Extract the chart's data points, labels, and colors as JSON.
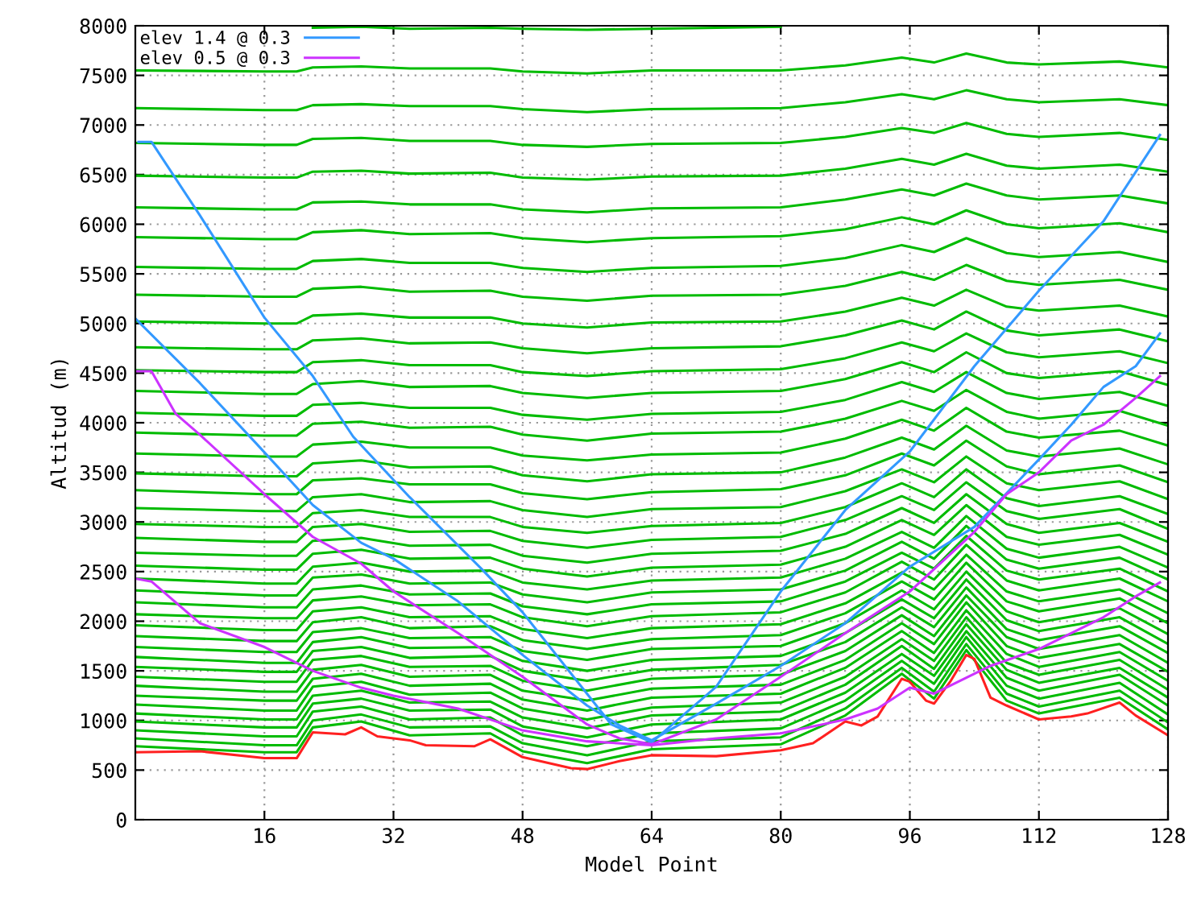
{
  "chart_data": {
    "type": "line",
    "xlabel": "Model Point",
    "ylabel": "Altitud (m)",
    "xlim": [
      0,
      128
    ],
    "ylim": [
      0,
      8000
    ],
    "xticks": [
      16,
      32,
      48,
      64,
      80,
      96,
      112,
      128
    ],
    "yticks": [
      0,
      500,
      1000,
      1500,
      2000,
      2500,
      3000,
      3500,
      4000,
      4500,
      5000,
      5500,
      6000,
      6500,
      7000,
      7500,
      8000
    ],
    "grid": true,
    "legend": "top left",
    "x": [
      0,
      16,
      20,
      22,
      28,
      34,
      44,
      48,
      56,
      64,
      80,
      88,
      95,
      99,
      103,
      108,
      112,
      122,
      128
    ],
    "series": [
      {
        "color": "#00bb00",
        "values": [
          740,
          680,
          680,
          930,
          990,
          850,
          870,
          690,
          570,
          710,
          760,
          1050,
          1470,
          1220,
          1710,
          1200,
          1070,
          1230,
          910
        ]
      },
      {
        "color": "#00bb00",
        "values": [
          820,
          750,
          750,
          1000,
          1060,
          930,
          940,
          770,
          650,
          790,
          830,
          1120,
          1530,
          1290,
          1770,
          1270,
          1140,
          1300,
          980
        ]
      },
      {
        "color": "#00bb00",
        "values": [
          900,
          840,
          840,
          1090,
          1140,
          1010,
          1030,
          850,
          740,
          870,
          920,
          1200,
          1600,
          1370,
          1840,
          1350,
          1220,
          1380,
          1060
        ]
      },
      {
        "color": "#00bb00",
        "values": [
          990,
          930,
          930,
          1170,
          1220,
          1100,
          1110,
          940,
          830,
          960,
          1010,
          1280,
          1670,
          1450,
          1900,
          1430,
          1300,
          1460,
          1150
        ]
      },
      {
        "color": "#00bb00",
        "values": [
          1070,
          1010,
          1010,
          1250,
          1300,
          1180,
          1190,
          1030,
          920,
          1050,
          1090,
          1360,
          1750,
          1520,
          1970,
          1510,
          1380,
          1530,
          1230
        ]
      },
      {
        "color": "#00bb00",
        "values": [
          1160,
          1100,
          1100,
          1340,
          1390,
          1260,
          1280,
          1120,
          1010,
          1130,
          1180,
          1440,
          1820,
          1600,
          2040,
          1580,
          1460,
          1610,
          1310
        ]
      },
      {
        "color": "#00bb00",
        "values": [
          1250,
          1200,
          1200,
          1420,
          1470,
          1350,
          1370,
          1210,
          1100,
          1230,
          1270,
          1530,
          1900,
          1680,
          2110,
          1670,
          1540,
          1690,
          1400
        ]
      },
      {
        "color": "#00bb00",
        "values": [
          1350,
          1290,
          1290,
          1510,
          1560,
          1440,
          1460,
          1300,
          1200,
          1320,
          1360,
          1610,
          1980,
          1770,
          2190,
          1750,
          1630,
          1770,
          1490
        ]
      },
      {
        "color": "#00bb00",
        "values": [
          1440,
          1390,
          1390,
          1610,
          1650,
          1540,
          1550,
          1400,
          1300,
          1420,
          1460,
          1700,
          2060,
          1850,
          2260,
          1840,
          1720,
          1860,
          1580
        ]
      },
      {
        "color": "#00bb00",
        "values": [
          1540,
          1490,
          1490,
          1700,
          1740,
          1630,
          1650,
          1500,
          1400,
          1510,
          1560,
          1790,
          2140,
          1940,
          2340,
          1920,
          1810,
          1950,
          1680
        ]
      },
      {
        "color": "#00bb00",
        "values": [
          1640,
          1580,
          1580,
          1790,
          1840,
          1730,
          1740,
          1600,
          1500,
          1610,
          1650,
          1880,
          2220,
          2030,
          2420,
          2010,
          1900,
          2040,
          1770
        ]
      },
      {
        "color": "#00bb00",
        "values": [
          1740,
          1690,
          1690,
          1890,
          1930,
          1830,
          1840,
          1700,
          1610,
          1720,
          1750,
          1980,
          2310,
          2120,
          2500,
          2100,
          1990,
          2130,
          1870
        ]
      },
      {
        "color": "#00bb00",
        "values": [
          1850,
          1800,
          1800,
          1990,
          2040,
          1930,
          1950,
          1810,
          1720,
          1820,
          1860,
          2080,
          2400,
          2220,
          2590,
          2200,
          2100,
          2230,
          1980
        ]
      },
      {
        "color": "#00bb00",
        "values": [
          1960,
          1910,
          1910,
          2100,
          2140,
          2040,
          2050,
          1920,
          1830,
          1930,
          1970,
          2180,
          2490,
          2320,
          2670,
          2300,
          2200,
          2320,
          2080
        ]
      },
      {
        "color": "#00bb00",
        "values": [
          2070,
          2030,
          2030,
          2210,
          2250,
          2160,
          2170,
          2040,
          1950,
          2050,
          2090,
          2290,
          2600,
          2420,
          2770,
          2410,
          2310,
          2430,
          2200
        ]
      },
      {
        "color": "#00bb00",
        "values": [
          2190,
          2140,
          2140,
          2320,
          2360,
          2270,
          2280,
          2150,
          2070,
          2170,
          2200,
          2400,
          2690,
          2530,
          2860,
          2510,
          2420,
          2530,
          2300
        ]
      },
      {
        "color": "#00bb00",
        "values": [
          2310,
          2260,
          2260,
          2440,
          2470,
          2380,
          2390,
          2270,
          2190,
          2290,
          2320,
          2510,
          2800,
          2630,
          2960,
          2620,
          2530,
          2640,
          2420
        ]
      },
      {
        "color": "#00bb00",
        "values": [
          2430,
          2380,
          2380,
          2550,
          2590,
          2500,
          2510,
          2390,
          2320,
          2410,
          2440,
          2630,
          2900,
          2740,
          3060,
          2730,
          2640,
          2750,
          2540
        ]
      },
      {
        "color": "#00bb00",
        "values": [
          2560,
          2520,
          2520,
          2680,
          2720,
          2630,
          2640,
          2530,
          2450,
          2540,
          2570,
          2750,
          3020,
          2870,
          3170,
          2850,
          2770,
          2870,
          2670
        ]
      },
      {
        "color": "#00bb00",
        "values": [
          2690,
          2660,
          2660,
          2810,
          2840,
          2760,
          2770,
          2660,
          2590,
          2680,
          2710,
          2880,
          3140,
          2990,
          3280,
          2980,
          2890,
          2990,
          2800
        ]
      },
      {
        "color": "#00bb00",
        "values": [
          2840,
          2800,
          2800,
          2950,
          2980,
          2900,
          2910,
          2810,
          2740,
          2820,
          2850,
          3020,
          3260,
          3120,
          3400,
          3110,
          3030,
          3130,
          2930
        ]
      },
      {
        "color": "#00bb00",
        "values": [
          2980,
          2950,
          2950,
          3090,
          3120,
          3050,
          3050,
          2950,
          2890,
          2960,
          2990,
          3150,
          3390,
          3250,
          3530,
          3240,
          3160,
          3260,
          3080
        ]
      },
      {
        "color": "#00bb00",
        "values": [
          3140,
          3110,
          3110,
          3250,
          3280,
          3200,
          3210,
          3120,
          3050,
          3130,
          3150,
          3310,
          3530,
          3400,
          3660,
          3390,
          3320,
          3410,
          3230
        ]
      },
      {
        "color": "#00bb00",
        "values": [
          3320,
          3280,
          3280,
          3420,
          3440,
          3380,
          3380,
          3290,
          3230,
          3300,
          3330,
          3470,
          3690,
          3570,
          3820,
          3560,
          3480,
          3570,
          3400
        ]
      },
      {
        "color": "#00bb00",
        "values": [
          3490,
          3460,
          3460,
          3590,
          3620,
          3550,
          3560,
          3470,
          3410,
          3480,
          3500,
          3650,
          3850,
          3730,
          3970,
          3720,
          3660,
          3740,
          3580
        ]
      },
      {
        "color": "#00bb00",
        "values": [
          3690,
          3660,
          3660,
          3780,
          3810,
          3750,
          3750,
          3670,
          3620,
          3680,
          3700,
          3840,
          4030,
          3920,
          4150,
          3910,
          3850,
          3920,
          3770
        ]
      },
      {
        "color": "#00bb00",
        "values": [
          3900,
          3870,
          3870,
          3990,
          4010,
          3950,
          3960,
          3880,
          3820,
          3890,
          3910,
          4040,
          4220,
          4120,
          4330,
          4110,
          4040,
          4120,
          3970
        ]
      },
      {
        "color": "#00bb00",
        "values": [
          4100,
          4070,
          4070,
          4180,
          4200,
          4150,
          4150,
          4080,
          4030,
          4090,
          4110,
          4230,
          4410,
          4310,
          4510,
          4300,
          4240,
          4310,
          4170
        ]
      },
      {
        "color": "#00bb00",
        "values": [
          4320,
          4290,
          4290,
          4390,
          4420,
          4360,
          4370,
          4300,
          4250,
          4300,
          4320,
          4440,
          4610,
          4510,
          4710,
          4500,
          4450,
          4520,
          4380
        ]
      },
      {
        "color": "#00bb00",
        "values": [
          4530,
          4510,
          4510,
          4610,
          4630,
          4580,
          4580,
          4510,
          4470,
          4520,
          4540,
          4650,
          4810,
          4720,
          4900,
          4710,
          4660,
          4720,
          4600
        ]
      },
      {
        "color": "#00bb00",
        "values": [
          4760,
          4740,
          4740,
          4830,
          4850,
          4800,
          4810,
          4750,
          4700,
          4750,
          4770,
          4880,
          5030,
          4940,
          5120,
          4930,
          4880,
          4940,
          4820
        ]
      },
      {
        "color": "#00bb00",
        "values": [
          5020,
          5000,
          5000,
          5080,
          5100,
          5060,
          5060,
          5000,
          4960,
          5010,
          5020,
          5120,
          5260,
          5180,
          5340,
          5170,
          5130,
          5180,
          5070
        ]
      },
      {
        "color": "#00bb00",
        "values": [
          5290,
          5270,
          5270,
          5350,
          5370,
          5320,
          5330,
          5270,
          5230,
          5280,
          5290,
          5380,
          5520,
          5440,
          5590,
          5430,
          5390,
          5440,
          5340
        ]
      },
      {
        "color": "#00bb00",
        "values": [
          5570,
          5550,
          5550,
          5630,
          5650,
          5610,
          5610,
          5560,
          5520,
          5560,
          5580,
          5660,
          5790,
          5720,
          5860,
          5710,
          5670,
          5720,
          5620
        ]
      },
      {
        "color": "#00bb00",
        "values": [
          5870,
          5850,
          5850,
          5920,
          5940,
          5900,
          5910,
          5860,
          5820,
          5860,
          5880,
          5950,
          6070,
          6000,
          6140,
          6000,
          5960,
          6010,
          5920
        ]
      },
      {
        "color": "#00bb00",
        "values": [
          6170,
          6150,
          6150,
          6220,
          6230,
          6200,
          6200,
          6150,
          6120,
          6160,
          6170,
          6250,
          6350,
          6290,
          6410,
          6290,
          6250,
          6290,
          6210
        ]
      },
      {
        "color": "#00bb00",
        "values": [
          6490,
          6470,
          6470,
          6530,
          6540,
          6510,
          6520,
          6470,
          6450,
          6480,
          6490,
          6560,
          6660,
          6600,
          6710,
          6590,
          6560,
          6600,
          6530
        ]
      },
      {
        "color": "#00bb00",
        "values": [
          6820,
          6800,
          6800,
          6860,
          6870,
          6840,
          6840,
          6800,
          6780,
          6810,
          6820,
          6880,
          6970,
          6920,
          7020,
          6910,
          6880,
          6920,
          6850
        ]
      },
      {
        "color": "#00bb00",
        "values": [
          7170,
          7150,
          7150,
          7200,
          7210,
          7190,
          7190,
          7160,
          7130,
          7160,
          7170,
          7230,
          7310,
          7260,
          7350,
          7260,
          7230,
          7260,
          7200
        ]
      },
      {
        "color": "#00bb00",
        "values": [
          7550,
          7540,
          7540,
          7580,
          7590,
          7570,
          7570,
          7540,
          7520,
          7550,
          7550,
          7600,
          7680,
          7630,
          7720,
          7630,
          7610,
          7640,
          7580
        ]
      },
      {
        "color": "#00bb00",
        "values": [
          null,
          null,
          null,
          7980,
          7990,
          7970,
          7980,
          7970,
          7960,
          7970,
          7990,
          null,
          null,
          null,
          null,
          null,
          null,
          null,
          null
        ]
      },
      {
        "color": "#ff2020",
        "x": [
          0,
          8,
          16,
          20,
          22,
          26,
          28,
          30,
          34,
          36,
          42,
          44,
          48,
          54,
          56,
          60,
          64,
          72,
          80,
          84,
          88,
          90,
          92,
          95,
          96,
          98,
          99,
          101,
          103,
          104,
          106,
          108,
          112,
          116,
          118,
          122,
          124,
          128
        ],
        "values": [
          680,
          690,
          620,
          620,
          880,
          860,
          930,
          840,
          800,
          750,
          740,
          810,
          630,
          520,
          510,
          590,
          650,
          640,
          700,
          770,
          990,
          950,
          1040,
          1420,
          1390,
          1200,
          1170,
          1390,
          1660,
          1620,
          1230,
          1150,
          1010,
          1040,
          1070,
          1180,
          1050,
          850
        ]
      },
      {
        "name": "elev 1.4 @ 0.3",
        "color": "#3399ff",
        "x": [
          0.4,
          2,
          8,
          16,
          22,
          27,
          34,
          43,
          48,
          59,
          64,
          72,
          80,
          88,
          96,
          104,
          112,
          120,
          127
        ],
        "values": [
          6830,
          6830,
          6090,
          5060,
          4470,
          3860,
          3250,
          2520,
          2090,
          960,
          780,
          1340,
          2300,
          3120,
          3710,
          4570,
          5330,
          6030,
          6900
        ]
      },
      {
        "color": "#3399ff",
        "x": [
          0,
          8,
          15,
          22,
          28,
          32,
          40,
          48,
          56,
          60,
          64,
          72,
          80,
          88,
          96,
          104,
          112,
          116,
          120,
          124,
          127
        ],
        "values": [
          5050,
          4400,
          3790,
          3170,
          2790,
          2630,
          2200,
          1660,
          1150,
          950,
          800,
          1170,
          1550,
          1980,
          2550,
          2950,
          3630,
          3980,
          4360,
          4570,
          4900
        ]
      },
      {
        "name": "elev 0.5 @ 0.3",
        "color": "#cc33ff",
        "x": [
          0,
          2,
          5,
          8,
          16,
          22,
          28,
          32,
          40,
          48,
          56,
          60,
          64,
          72,
          80,
          88,
          96,
          104,
          108,
          112,
          116,
          120,
          124,
          127
        ],
        "values": [
          4520,
          4520,
          4090,
          3880,
          3280,
          2850,
          2580,
          2300,
          1880,
          1440,
          960,
          820,
          760,
          1010,
          1440,
          1880,
          2300,
          2900,
          3280,
          3500,
          3820,
          3980,
          4250,
          4470
        ]
      },
      {
        "color": "#cc33ff",
        "x": [
          0,
          2,
          8,
          16,
          22,
          28,
          32,
          40,
          48,
          56,
          64,
          72,
          80,
          88,
          92,
          96,
          99,
          106,
          112,
          120,
          124,
          127
        ],
        "values": [
          2430,
          2400,
          1980,
          1740,
          1500,
          1330,
          1250,
          1120,
          900,
          790,
          750,
          820,
          870,
          1010,
          1120,
          1330,
          1270,
          1550,
          1720,
          2040,
          2250,
          2390
        ]
      }
    ]
  }
}
